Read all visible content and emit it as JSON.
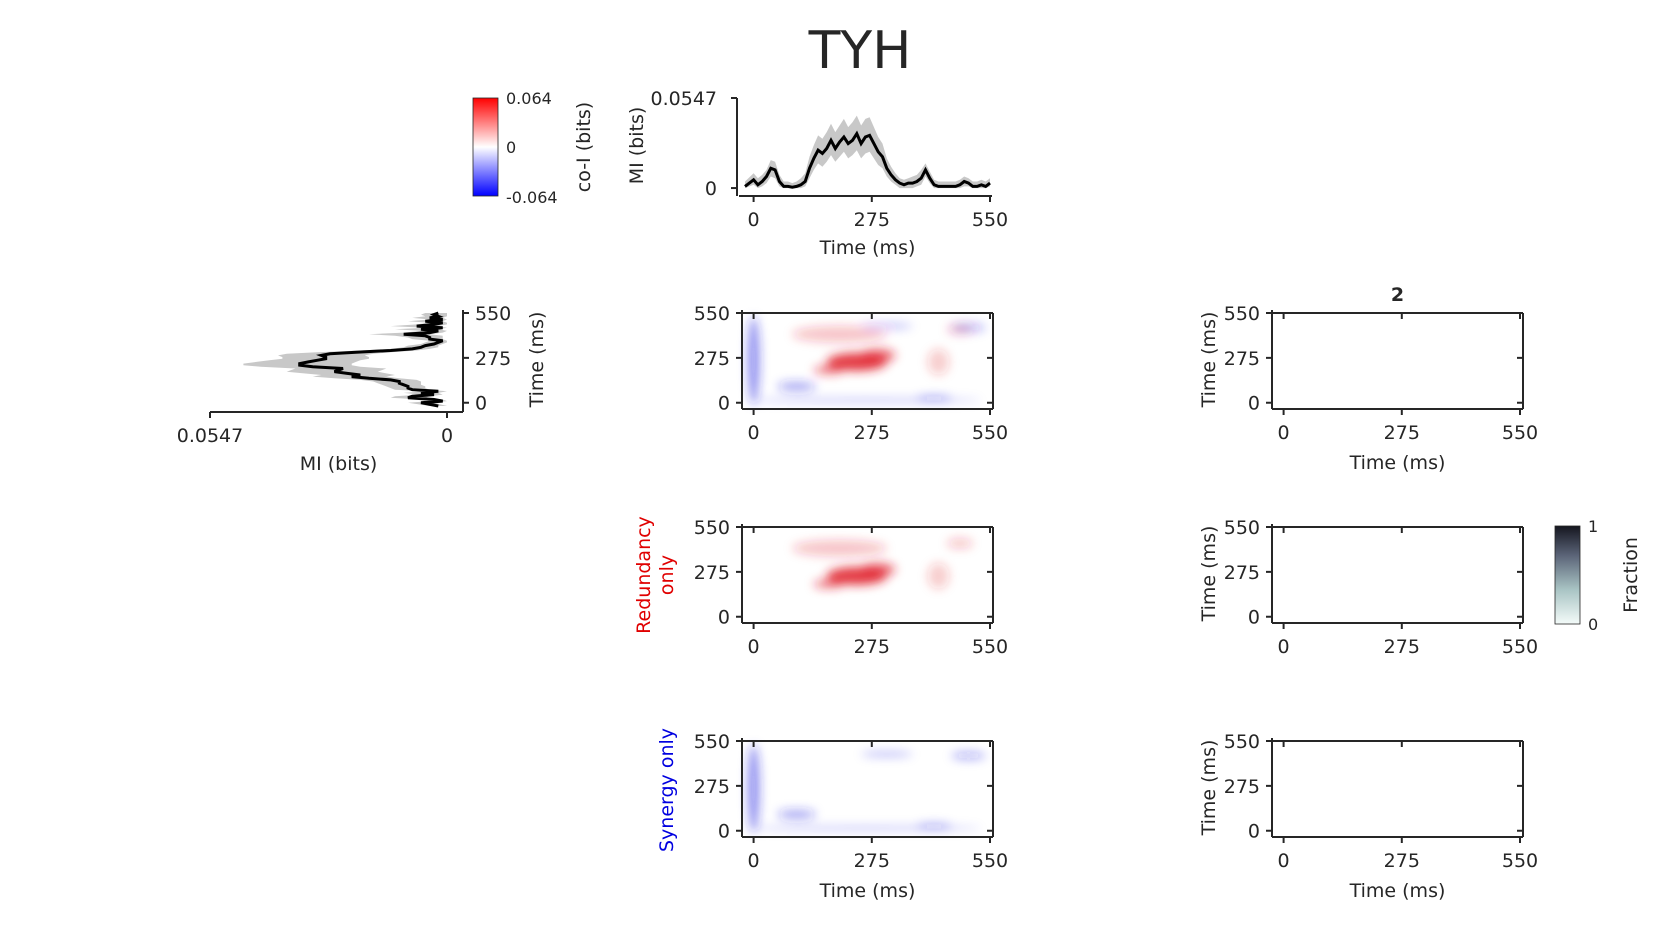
{
  "figure": {
    "title": "TYH",
    "time_label": "Time (ms)",
    "mi_label": "MI (bits)",
    "coi_label": "co-I (bits)",
    "fraction_label": "Fraction",
    "redundancy_label": [
      "Redundancy",
      "only"
    ],
    "synergy_label": "Synergy only",
    "panel_title": "2",
    "colors": {
      "positive": "#e0202a",
      "negative": "#2020e0",
      "mi_line": "#000000",
      "mi_band": "#c8c8c8",
      "axis": "#262626"
    }
  },
  "chart_data": [
    {
      "id": "mi_time_x",
      "type": "line",
      "title": "",
      "xlabel": "Time (ms)",
      "ylabel": "MI (bits)",
      "xlim": [
        -20,
        550
      ],
      "ylim": [
        -0.003,
        0.0547
      ],
      "xticks": [
        0,
        275,
        550
      ],
      "yticks": [
        0,
        0.0547
      ],
      "ytick_labels": [
        "0",
        "0.0547"
      ],
      "x": [
        -20,
        0,
        10,
        20,
        30,
        40,
        50,
        60,
        70,
        80,
        90,
        100,
        110,
        120,
        130,
        140,
        150,
        160,
        170,
        180,
        190,
        200,
        210,
        220,
        230,
        240,
        250,
        260,
        270,
        280,
        290,
        300,
        310,
        320,
        330,
        340,
        350,
        360,
        370,
        380,
        390,
        400,
        410,
        420,
        430,
        440,
        450,
        460,
        470,
        480,
        490,
        500,
        510,
        520,
        530,
        540,
        550
      ],
      "mean": [
        0.001,
        0.005,
        0.002,
        0.004,
        0.007,
        0.012,
        0.011,
        0.004,
        0.001,
        0.001,
        0.0005,
        0.001,
        0.002,
        0.004,
        0.012,
        0.018,
        0.023,
        0.021,
        0.024,
        0.029,
        0.024,
        0.028,
        0.031,
        0.027,
        0.029,
        0.033,
        0.027,
        0.031,
        0.032,
        0.027,
        0.022,
        0.019,
        0.012,
        0.008,
        0.005,
        0.003,
        0.002,
        0.003,
        0.003,
        0.004,
        0.006,
        0.011,
        0.006,
        0.002,
        0.001,
        0.001,
        0.001,
        0.001,
        0.001,
        0.002,
        0.004,
        0.003,
        0.001,
        0.001,
        0.002,
        0.001,
        0.003
      ],
      "upper": [
        0.004,
        0.009,
        0.006,
        0.008,
        0.011,
        0.017,
        0.016,
        0.008,
        0.004,
        0.004,
        0.003,
        0.004,
        0.006,
        0.009,
        0.019,
        0.026,
        0.032,
        0.03,
        0.034,
        0.039,
        0.034,
        0.038,
        0.042,
        0.037,
        0.04,
        0.044,
        0.038,
        0.042,
        0.043,
        0.037,
        0.031,
        0.027,
        0.018,
        0.013,
        0.009,
        0.006,
        0.005,
        0.006,
        0.007,
        0.008,
        0.011,
        0.015,
        0.01,
        0.005,
        0.004,
        0.004,
        0.004,
        0.004,
        0.004,
        0.005,
        0.007,
        0.006,
        0.004,
        0.004,
        0.005,
        0.004,
        0.006
      ],
      "lower": [
        0.0,
        0.002,
        0.0,
        0.001,
        0.003,
        0.007,
        0.006,
        0.001,
        0.0,
        0.0,
        0.0,
        0.0,
        0.0,
        0.001,
        0.006,
        0.011,
        0.015,
        0.013,
        0.016,
        0.02,
        0.016,
        0.019,
        0.022,
        0.018,
        0.02,
        0.023,
        0.018,
        0.021,
        0.022,
        0.018,
        0.014,
        0.012,
        0.007,
        0.004,
        0.002,
        0.0,
        0.0,
        0.0,
        0.0,
        0.001,
        0.002,
        0.007,
        0.003,
        0.0,
        0.0,
        0.0,
        0.0,
        0.0,
        0.0,
        0.0,
        0.001,
        0.001,
        0.0,
        0.0,
        0.0,
        0.0,
        0.001
      ]
    },
    {
      "id": "mi_time_y",
      "type": "line",
      "orientation": "vertical",
      "title": "",
      "xlabel": "MI (bits)",
      "ylabel": "Time (ms)",
      "xlim_reversed": [
        0.0547,
        -0.003
      ],
      "ylim": [
        -20,
        550
      ],
      "xticks": [
        0.0547,
        0
      ],
      "xtick_labels": [
        "0.0547",
        "0"
      ],
      "yticks": [
        0,
        275,
        550
      ],
      "t": [
        -20,
        0,
        10,
        20,
        30,
        40,
        50,
        60,
        70,
        80,
        90,
        100,
        110,
        120,
        130,
        140,
        150,
        160,
        170,
        180,
        190,
        200,
        210,
        220,
        230,
        240,
        250,
        260,
        270,
        280,
        290,
        300,
        310,
        320,
        330,
        340,
        350,
        360,
        370,
        380,
        390,
        400,
        410,
        420,
        430,
        440,
        450,
        460,
        470,
        480,
        490,
        500,
        510,
        520,
        530,
        540,
        550
      ],
      "mean": [
        0.002,
        0.006,
        0.001,
        0.003,
        0.009,
        0.008,
        0.003,
        0.006,
        0.002,
        0.008,
        0.009,
        0.009,
        0.01,
        0.011,
        0.011,
        0.013,
        0.018,
        0.022,
        0.02,
        0.023,
        0.026,
        0.025,
        0.024,
        0.031,
        0.034,
        0.034,
        0.032,
        0.03,
        0.028,
        0.028,
        0.029,
        0.027,
        0.021,
        0.013,
        0.008,
        0.006,
        0.005,
        0.003,
        0.002,
        0.001,
        0.004,
        0.004,
        0.005,
        0.01,
        0.004,
        0.002,
        0.006,
        0.001,
        0.007,
        0.003,
        0.001,
        0.005,
        0.001,
        0.004,
        0.002,
        0.003,
        0.002
      ],
      "upper": [
        0.004,
        0.009,
        0.004,
        0.006,
        0.013,
        0.012,
        0.006,
        0.01,
        0.005,
        0.012,
        0.013,
        0.014,
        0.015,
        0.016,
        0.017,
        0.02,
        0.026,
        0.031,
        0.029,
        0.033,
        0.037,
        0.036,
        0.035,
        0.043,
        0.047,
        0.047,
        0.044,
        0.041,
        0.038,
        0.038,
        0.039,
        0.037,
        0.03,
        0.02,
        0.013,
        0.01,
        0.009,
        0.006,
        0.005,
        0.004,
        0.008,
        0.009,
        0.012,
        0.018,
        0.01,
        0.006,
        0.012,
        0.005,
        0.013,
        0.007,
        0.004,
        0.009,
        0.004,
        0.008,
        0.005,
        0.006,
        0.005
      ],
      "lower": [
        0.0,
        0.003,
        0.0,
        0.001,
        0.005,
        0.004,
        0.001,
        0.002,
        0.0,
        0.004,
        0.005,
        0.005,
        0.006,
        0.006,
        0.006,
        0.007,
        0.011,
        0.014,
        0.012,
        0.014,
        0.016,
        0.015,
        0.014,
        0.02,
        0.022,
        0.022,
        0.021,
        0.02,
        0.018,
        0.018,
        0.019,
        0.017,
        0.013,
        0.007,
        0.004,
        0.002,
        0.002,
        0.001,
        0.0,
        0.0,
        0.001,
        0.001,
        0.001,
        0.004,
        0.001,
        0.0,
        0.002,
        0.0,
        0.002,
        0.0,
        0.0,
        0.001,
        0.0,
        0.001,
        0.0,
        0.0,
        0.0
      ]
    },
    {
      "id": "coi_total",
      "type": "heatmap",
      "title": "",
      "xlabel": "",
      "ylabel": "",
      "xlim": [
        -20,
        550
      ],
      "ylim": [
        -20,
        550
      ],
      "xticks": [
        0,
        275,
        550
      ],
      "yticks": [
        0,
        275,
        550
      ],
      "clim": [
        -0.064,
        0.064
      ],
      "blobs": [
        {
          "x": 240,
          "y": 250,
          "rx": 70,
          "ry": 55,
          "v": 0.04
        },
        {
          "x": 290,
          "y": 290,
          "rx": 40,
          "ry": 40,
          "v": 0.03
        },
        {
          "x": 175,
          "y": 200,
          "rx": 35,
          "ry": 25,
          "v": 0.028
        },
        {
          "x": 200,
          "y": 420,
          "rx": 110,
          "ry": 50,
          "v": 0.012
        },
        {
          "x": 430,
          "y": 250,
          "rx": 25,
          "ry": 80,
          "v": 0.01
        },
        {
          "x": 480,
          "y": 450,
          "rx": 30,
          "ry": 30,
          "v": 0.012
        },
        {
          "x": 0,
          "y": 260,
          "rx": 14,
          "ry": 270,
          "v": -0.022
        },
        {
          "x": 100,
          "y": 100,
          "rx": 45,
          "ry": 28,
          "v": -0.018
        },
        {
          "x": 260,
          "y": 15,
          "rx": 270,
          "ry": 10,
          "v": -0.015
        },
        {
          "x": 420,
          "y": 30,
          "rx": 40,
          "ry": 14,
          "v": -0.016
        },
        {
          "x": 500,
          "y": 460,
          "rx": 40,
          "ry": 25,
          "v": -0.014
        },
        {
          "x": 310,
          "y": 470,
          "rx": 60,
          "ry": 18,
          "v": -0.012
        }
      ]
    },
    {
      "id": "coi_redundancy",
      "type": "heatmap",
      "title": "",
      "xlabel": "",
      "ylabel": "",
      "xlim": [
        -20,
        550
      ],
      "ylim": [
        -20,
        550
      ],
      "xticks": [
        0,
        275,
        550
      ],
      "yticks": [
        0,
        275,
        550
      ],
      "clim": [
        -0.064,
        0.064
      ],
      "blobs": [
        {
          "x": 240,
          "y": 250,
          "rx": 70,
          "ry": 55,
          "v": 0.04
        },
        {
          "x": 290,
          "y": 290,
          "rx": 40,
          "ry": 40,
          "v": 0.03
        },
        {
          "x": 175,
          "y": 200,
          "rx": 35,
          "ry": 25,
          "v": 0.028
        },
        {
          "x": 200,
          "y": 420,
          "rx": 110,
          "ry": 50,
          "v": 0.012
        },
        {
          "x": 430,
          "y": 250,
          "rx": 25,
          "ry": 80,
          "v": 0.01
        },
        {
          "x": 480,
          "y": 450,
          "rx": 30,
          "ry": 30,
          "v": 0.012
        }
      ]
    },
    {
      "id": "coi_synergy",
      "type": "heatmap",
      "title": "",
      "xlabel": "Time (ms)",
      "ylabel": "",
      "xlim": [
        -20,
        550
      ],
      "ylim": [
        -20,
        550
      ],
      "xticks": [
        0,
        275,
        550
      ],
      "yticks": [
        0,
        275,
        550
      ],
      "clim": [
        -0.064,
        0.064
      ],
      "blobs": [
        {
          "x": 0,
          "y": 260,
          "rx": 14,
          "ry": 270,
          "v": -0.022
        },
        {
          "x": 100,
          "y": 100,
          "rx": 45,
          "ry": 28,
          "v": -0.018
        },
        {
          "x": 260,
          "y": 15,
          "rx": 270,
          "ry": 10,
          "v": -0.015
        },
        {
          "x": 420,
          "y": 30,
          "rx": 40,
          "ry": 14,
          "v": -0.016
        },
        {
          "x": 500,
          "y": 460,
          "rx": 40,
          "ry": 25,
          "v": -0.014
        },
        {
          "x": 310,
          "y": 470,
          "rx": 60,
          "ry": 18,
          "v": -0.012
        }
      ]
    },
    {
      "id": "fraction_1",
      "type": "heatmap",
      "title": "2",
      "xlabel": "Time (ms)",
      "ylabel": "Time (ms)",
      "xlim": [
        -20,
        550
      ],
      "ylim": [
        -20,
        550
      ],
      "xticks": [
        0,
        275,
        550
      ],
      "yticks": [
        0,
        275,
        550
      ],
      "clim": [
        0,
        1
      ],
      "blobs": []
    },
    {
      "id": "fraction_2",
      "type": "heatmap",
      "title": "",
      "xlabel": "",
      "ylabel": "Time (ms)",
      "xlim": [
        -20,
        550
      ],
      "ylim": [
        -20,
        550
      ],
      "xticks": [
        0,
        275,
        550
      ],
      "yticks": [
        0,
        275,
        550
      ],
      "clim": [
        0,
        1
      ],
      "blobs": []
    },
    {
      "id": "fraction_3",
      "type": "heatmap",
      "title": "",
      "xlabel": "Time (ms)",
      "ylabel": "Time (ms)",
      "xlim": [
        -20,
        550
      ],
      "ylim": [
        -20,
        550
      ],
      "xticks": [
        0,
        275,
        550
      ],
      "yticks": [
        0,
        275,
        550
      ],
      "clim": [
        0,
        1
      ],
      "blobs": []
    },
    {
      "id": "colorbar_coi",
      "type": "colorbar",
      "label": "co-I (bits)",
      "ticks": [
        0.064,
        0,
        -0.064
      ],
      "tick_labels": [
        "0.064",
        "0",
        "-0.064"
      ]
    },
    {
      "id": "colorbar_fraction",
      "type": "colorbar",
      "label": "Fraction",
      "ticks": [
        1,
        0
      ],
      "tick_labels": [
        "1",
        "0"
      ]
    }
  ]
}
